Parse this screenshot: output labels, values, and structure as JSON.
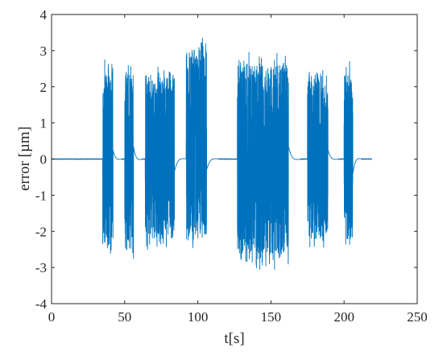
{
  "chart_data": {
    "type": "line",
    "title": "",
    "xlabel": "t[s]",
    "ylabel": "error [µm]",
    "xlim": [
      0,
      250
    ],
    "ylim": [
      -4,
      4
    ],
    "xticks": [
      0,
      50,
      100,
      150,
      200,
      250
    ],
    "yticks": [
      -4,
      -3,
      -2,
      -1,
      0,
      1,
      2,
      3,
      4
    ],
    "grid": false,
    "legend": "none",
    "line_color": "#0072BD",
    "time_range": [
      0,
      219
    ],
    "baseline_value": 0,
    "active_segments": [
      {
        "start": 35,
        "end": 42,
        "max": 2.75,
        "min": -2.65,
        "settle_end": 48,
        "settle_amp": 0.25
      },
      {
        "start": 50,
        "end": 56,
        "max": 2.85,
        "min": -2.75,
        "settle_end": 62,
        "settle_amp": 0.35
      },
      {
        "start": 64,
        "end": 84,
        "max": 2.55,
        "min": -2.5,
        "settle_end": 92,
        "settle_amp": -0.35
      },
      {
        "start": 92,
        "end": 106,
        "max": 3.35,
        "min": -2.45,
        "settle_end": 114,
        "settle_amp": -0.3
      },
      {
        "start": 127,
        "end": 162,
        "max": 2.95,
        "min": -3.05,
        "settle_end": 170,
        "settle_amp": 0.35
      },
      {
        "start": 175,
        "end": 189,
        "max": 2.6,
        "min": -2.55,
        "settle_end": 196,
        "settle_amp": 0.25
      },
      {
        "start": 200,
        "end": 206,
        "max": 2.7,
        "min": -2.45,
        "settle_end": 212,
        "settle_amp": -0.4
      }
    ]
  }
}
